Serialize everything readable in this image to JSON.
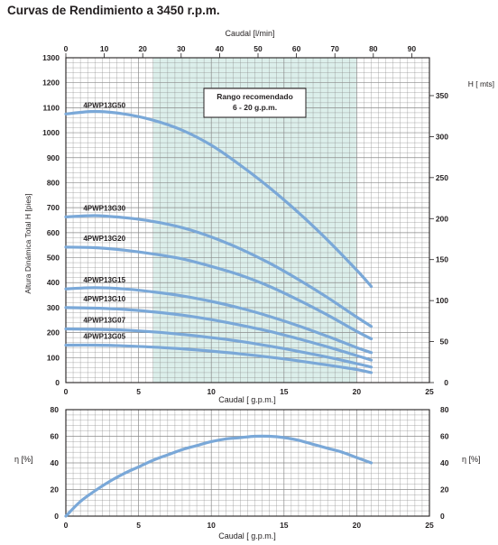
{
  "page_title": "Curvas de Rendimiento a 3450 r.p.m.",
  "colors": {
    "curve": "#7aa8d8",
    "grid": "#8a8a8a",
    "recommended_band": "#dcefeb",
    "text": "#231f20"
  },
  "chart_data": [
    {
      "type": "line",
      "title": "",
      "xlabel": "Caudal [ g.p.m.]",
      "x2label": "Caudal [l/min]",
      "ylabel": "Altura Dinámica Total H [pies]",
      "y2label": "H [ mts]",
      "xlim": [
        0,
        25
      ],
      "ylim": [
        0,
        1300
      ],
      "x2lim": [
        0,
        94.6
      ],
      "y2lim": [
        0,
        396.2
      ],
      "xticks": [
        "0",
        "5",
        "10",
        "15",
        "20",
        "25"
      ],
      "yticks": [
        "0",
        "100",
        "200",
        "300",
        "400",
        "500",
        "600",
        "700",
        "800",
        "900",
        "1000",
        "1100",
        "1200",
        "1300"
      ],
      "x2ticks": [
        "0",
        "10",
        "20",
        "30",
        "40",
        "50",
        "60",
        "70",
        "80",
        "90"
      ],
      "y2ticks": [
        "0",
        "50",
        "100",
        "150",
        "200",
        "250",
        "300",
        "350"
      ],
      "grid": true,
      "annotation": {
        "text_line1": "Rango recomendado",
        "text_line2": "6 - 20 g.p.m.",
        "x_range": [
          6,
          20
        ]
      },
      "series": [
        {
          "name": "4PWP13G50",
          "x": [
            0,
            2,
            4,
            6,
            8,
            10,
            12,
            14,
            16,
            18,
            20,
            21
          ],
          "y": [
            1075,
            1085,
            1075,
            1050,
            1010,
            950,
            870,
            780,
            680,
            570,
            450,
            385
          ]
        },
        {
          "name": "4PWP13G30",
          "x": [
            0,
            2,
            4,
            6,
            8,
            10,
            12,
            14,
            16,
            18,
            20,
            21
          ],
          "y": [
            663,
            668,
            660,
            645,
            620,
            583,
            535,
            478,
            412,
            340,
            262,
            225
          ]
        },
        {
          "name": "4PWP13G20",
          "x": [
            0,
            2,
            4,
            6,
            8,
            10,
            12,
            14,
            16,
            18,
            20,
            21
          ],
          "y": [
            542,
            540,
            530,
            515,
            495,
            465,
            430,
            385,
            330,
            270,
            205,
            175
          ]
        },
        {
          "name": "4PWP13G15",
          "x": [
            0,
            2,
            4,
            6,
            8,
            10,
            12,
            14,
            16,
            18,
            20,
            21
          ],
          "y": [
            375,
            380,
            375,
            363,
            347,
            325,
            298,
            265,
            227,
            185,
            140,
            120
          ]
        },
        {
          "name": "4PWP13G10",
          "x": [
            0,
            2,
            4,
            6,
            8,
            10,
            12,
            14,
            16,
            18,
            20,
            21
          ],
          "y": [
            300,
            298,
            293,
            283,
            270,
            252,
            230,
            205,
            175,
            143,
            108,
            90
          ]
        },
        {
          "name": "4PWP13G07",
          "x": [
            0,
            2,
            4,
            6,
            8,
            10,
            12,
            14,
            16,
            18,
            20,
            21
          ],
          "y": [
            215,
            213,
            210,
            203,
            193,
            180,
            165,
            146,
            125,
            102,
            76,
            62
          ]
        },
        {
          "name": "4PWP13G05",
          "x": [
            0,
            2,
            4,
            6,
            8,
            10,
            12,
            14,
            16,
            18,
            20,
            21
          ],
          "y": [
            150,
            150,
            147,
            142,
            135,
            126,
            115,
            102,
            87,
            70,
            52,
            40
          ]
        }
      ]
    },
    {
      "type": "line",
      "title": "",
      "xlabel": "Caudal [ g.p.m.]",
      "ylabel": "η [%]",
      "y2label": "η [%]",
      "xlim": [
        0,
        25
      ],
      "ylim": [
        0,
        80
      ],
      "xticks": [
        "0",
        "5",
        "10",
        "15",
        "20",
        "25"
      ],
      "yticks": [
        "0",
        "20",
        "40",
        "60",
        "80"
      ],
      "y2ticks": [
        "0",
        "20",
        "40",
        "60",
        "80"
      ],
      "grid": true,
      "series": [
        {
          "name": "",
          "x": [
            0,
            1,
            2,
            3,
            4,
            5,
            6,
            7,
            8,
            9,
            10,
            11,
            12,
            13,
            14,
            15,
            16,
            17,
            18,
            19,
            20,
            21
          ],
          "y": [
            0,
            11,
            19,
            26,
            32,
            37,
            42,
            46,
            50,
            53,
            56,
            58,
            59,
            60,
            60,
            59,
            57,
            54,
            51,
            48,
            44,
            40
          ]
        }
      ]
    }
  ]
}
